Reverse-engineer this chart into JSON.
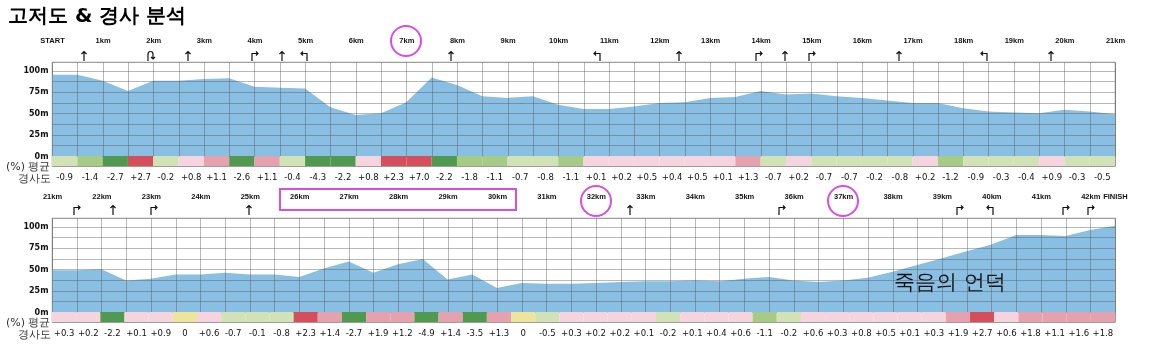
{
  "chart_data": [
    {
      "type": "area",
      "title": "고저도 & 경사 분석",
      "color": "#89bfe2",
      "grid": true,
      "x": [
        0,
        0.5,
        1,
        1.5,
        2,
        2.5,
        3,
        3.5,
        4,
        4.5,
        5,
        5.5,
        6,
        6.5,
        7,
        7.5,
        8,
        8.5,
        9,
        9.5,
        10,
        10.5,
        11,
        11.5,
        12,
        12.5,
        13,
        13.5,
        14,
        14.5,
        15,
        15.5,
        16,
        16.5,
        17,
        17.5,
        18,
        18.5,
        19,
        19.5,
        20,
        20.5,
        21
      ],
      "values": [
        95,
        95,
        88,
        76,
        88,
        88,
        90,
        91,
        81,
        80,
        79,
        57,
        48,
        50,
        63,
        92,
        83,
        70,
        68,
        70,
        60,
        55,
        55,
        58,
        62,
        63,
        68,
        69,
        76,
        72,
        73,
        70,
        68,
        65,
        62,
        62,
        56,
        52,
        51,
        50,
        54,
        52,
        49
      ],
      "xlim": [
        0,
        21
      ],
      "xticks": [
        {
          "value": 0,
          "label": "START"
        },
        {
          "value": 0.5,
          "label": null
        },
        {
          "value": 1,
          "label": "1km"
        },
        {
          "value": 1.5,
          "label": null
        },
        {
          "value": 2,
          "label": "2km"
        },
        {
          "value": 2.5,
          "label": null
        },
        {
          "value": 3,
          "label": "3km"
        },
        {
          "value": 3.5,
          "label": null
        },
        {
          "value": 4,
          "label": "4km"
        },
        {
          "value": 4.5,
          "label": null
        },
        {
          "value": 5,
          "label": "5km"
        },
        {
          "value": 5.5,
          "label": null
        },
        {
          "value": 6,
          "label": "6km"
        },
        {
          "value": 6.5,
          "label": null
        },
        {
          "value": 7,
          "label": "7km"
        },
        {
          "value": 7.5,
          "label": null
        },
        {
          "value": 8,
          "label": "8km"
        },
        {
          "value": 8.5,
          "label": null
        },
        {
          "value": 9,
          "label": "9km"
        },
        {
          "value": 9.5,
          "label": null
        },
        {
          "value": 10,
          "label": "10km"
        },
        {
          "value": 10.5,
          "label": null
        },
        {
          "value": 11,
          "label": "11km"
        },
        {
          "value": 11.5,
          "label": null
        },
        {
          "value": 12,
          "label": "12km"
        },
        {
          "value": 12.5,
          "label": null
        },
        {
          "value": 13,
          "label": "13km"
        },
        {
          "value": 13.5,
          "label": null
        },
        {
          "value": 14,
          "label": "14km"
        },
        {
          "value": 14.5,
          "label": null
        },
        {
          "value": 15,
          "label": "15km"
        },
        {
          "value": 15.5,
          "label": null
        },
        {
          "value": 16,
          "label": "16km"
        },
        {
          "value": 16.5,
          "label": null
        },
        {
          "value": 17,
          "label": "17km"
        },
        {
          "value": 17.5,
          "label": null
        },
        {
          "value": 18,
          "label": "18km"
        },
        {
          "value": 18.5,
          "label": null
        },
        {
          "value": 19,
          "label": "19km"
        },
        {
          "value": 19.5,
          "label": null
        },
        {
          "value": 20,
          "label": "20km"
        },
        {
          "value": 20.5,
          "label": null
        },
        {
          "value": 21,
          "label": "21km"
        }
      ],
      "ylim": [
        0,
        110
      ],
      "yticks": [
        {
          "value": 0,
          "label": "0m"
        },
        {
          "value": 12.5,
          "label": null
        },
        {
          "value": 25,
          "label": "25m"
        },
        {
          "value": 37.5,
          "label": null
        },
        {
          "value": 50,
          "label": "50m"
        },
        {
          "value": 62.5,
          "label": null
        },
        {
          "value": 75,
          "label": "75m"
        },
        {
          "value": 87.5,
          "label": null
        },
        {
          "value": 100,
          "label": "100m"
        }
      ]
    },
    {
      "type": "heatmap",
      "categories": [
        null,
        null,
        null,
        null,
        null,
        null,
        null,
        null,
        null,
        null,
        null,
        null,
        null,
        null,
        null,
        null,
        null,
        null,
        null,
        null,
        null,
        null,
        null,
        null,
        null,
        null,
        null,
        null,
        null,
        null,
        null,
        null,
        null,
        null,
        null,
        null,
        null,
        null,
        null,
        null,
        null,
        null
      ],
      "y_categories": [
        "(%) 평균 경사도"
      ],
      "cells": [
        [
          -0.9,
          -1.4,
          -2.7,
          2.7,
          -0.2,
          0.8,
          1.1,
          -2.6,
          1.1,
          -0.4,
          -4.3,
          -2.2,
          0.8,
          2.3,
          7.0,
          -2.2,
          -1.8,
          -1.1,
          -0.7,
          -0.8,
          -1.1,
          0.1,
          0.2,
          0.5,
          0.4,
          0.5,
          0.1,
          1.3,
          -0.7,
          0.2,
          -0.7,
          -0.7,
          -0.2,
          -0.8,
          0.2,
          -1.2,
          -0.9,
          -0.3,
          -0.4,
          0.9,
          -0.3,
          -0.5
        ]
      ],
      "cell_labels": [
        [
          "-0.9",
          "-1.4",
          "-2.7",
          "+2.7",
          "-0.2",
          "+0.8",
          "+1.1",
          "-2.6",
          "+1.1",
          "-0.4",
          "-4.3",
          "-2.2",
          "+0.8",
          "+2.3",
          "+7.0",
          "-2.2",
          "-1.8",
          "-1.1",
          "-0.7",
          "-0.8",
          "-1.1",
          "+0.1",
          "+0.2",
          "+0.5",
          "+0.4",
          "+0.5",
          "+0.1",
          "+1.3",
          "-0.7",
          "+0.2",
          "-0.7",
          "-0.7",
          "-0.2",
          "-0.8",
          "+0.2",
          "-1.2",
          "-0.9",
          "-0.3",
          "-0.4",
          "+0.9",
          "-0.3",
          "-0.5"
        ]
      ]
    },
    {
      "type": "area",
      "color": "#89bfe2",
      "grid": true,
      "x": [
        21,
        21.5,
        22,
        22.5,
        23,
        23.5,
        24,
        24.5,
        25,
        25.5,
        26,
        26.5,
        27,
        27.5,
        28,
        28.5,
        29,
        29.5,
        30,
        30.5,
        31,
        31.5,
        32,
        32.5,
        33,
        33.5,
        34,
        34.5,
        35,
        35.5,
        36,
        36.5,
        37,
        37.5,
        38,
        38.5,
        39,
        39.5,
        40,
        40.5,
        41,
        41.5,
        42,
        42.5
      ],
      "values": [
        49,
        49,
        50,
        37,
        39,
        44,
        44,
        46,
        44,
        44,
        41,
        51,
        59,
        46,
        56,
        62,
        38,
        44,
        28,
        34,
        33,
        33,
        34,
        35,
        36,
        36,
        37,
        36,
        39,
        41,
        37,
        35,
        37,
        40,
        47,
        55,
        63,
        71,
        79,
        90,
        90,
        89,
        96,
        101
      ],
      "annotations": [
        "죽음의 언덕"
      ],
      "xlim": [
        21,
        42.5
      ],
      "xticks": [
        {
          "value": 21,
          "label": "21km"
        },
        {
          "value": 21.5,
          "label": null
        },
        {
          "value": 22,
          "label": "22km"
        },
        {
          "value": 22.5,
          "label": null
        },
        {
          "value": 23,
          "label": "23km"
        },
        {
          "value": 23.5,
          "label": null
        },
        {
          "value": 24,
          "label": "24km"
        },
        {
          "value": 24.5,
          "label": null
        },
        {
          "value": 25,
          "label": "25km"
        },
        {
          "value": 25.5,
          "label": null
        },
        {
          "value": 26,
          "label": "26km"
        },
        {
          "value": 26.5,
          "label": null
        },
        {
          "value": 27,
          "label": "27km"
        },
        {
          "value": 27.5,
          "label": null
        },
        {
          "value": 28,
          "label": "28km"
        },
        {
          "value": 28.5,
          "label": null
        },
        {
          "value": 29,
          "label": "29km"
        },
        {
          "value": 29.5,
          "label": null
        },
        {
          "value": 30,
          "label": "30km"
        },
        {
          "value": 30.5,
          "label": null
        },
        {
          "value": 31,
          "label": "31km"
        },
        {
          "value": 31.5,
          "label": null
        },
        {
          "value": 32,
          "label": "32km"
        },
        {
          "value": 32.5,
          "label": null
        },
        {
          "value": 33,
          "label": "33km"
        },
        {
          "value": 33.5,
          "label": null
        },
        {
          "value": 34,
          "label": "34km"
        },
        {
          "value": 34.5,
          "label": null
        },
        {
          "value": 35,
          "label": "35km"
        },
        {
          "value": 35.5,
          "label": null
        },
        {
          "value": 36,
          "label": "36km"
        },
        {
          "value": 36.5,
          "label": null
        },
        {
          "value": 37,
          "label": "37km"
        },
        {
          "value": 37.5,
          "label": null
        },
        {
          "value": 38,
          "label": "38km"
        },
        {
          "value": 38.5,
          "label": null
        },
        {
          "value": 39,
          "label": "39km"
        },
        {
          "value": 39.5,
          "label": null
        },
        {
          "value": 40,
          "label": "40km"
        },
        {
          "value": 40.5,
          "label": null
        },
        {
          "value": 41,
          "label": "41km"
        },
        {
          "value": 41.5,
          "label": null
        },
        {
          "value": 42,
          "label": "42km"
        },
        {
          "value": 42.5,
          "label": "FINISH"
        }
      ],
      "ylim": [
        0,
        110
      ],
      "yticks": [
        {
          "value": 0,
          "label": "0m"
        },
        {
          "value": 12.5,
          "label": null
        },
        {
          "value": 25,
          "label": "25m"
        },
        {
          "value": 37.5,
          "label": null
        },
        {
          "value": 50,
          "label": "50m"
        },
        {
          "value": 62.5,
          "label": null
        },
        {
          "value": 75,
          "label": "75m"
        },
        {
          "value": 87.5,
          "label": null
        },
        {
          "value": 100,
          "label": "100m"
        }
      ]
    },
    {
      "type": "heatmap",
      "categories": [
        null,
        null,
        null,
        null,
        null,
        null,
        null,
        null,
        null,
        null,
        null,
        null,
        null,
        null,
        null,
        null,
        null,
        null,
        null,
        null,
        null,
        null,
        null,
        null,
        null,
        null,
        null,
        null,
        null,
        null,
        null,
        null,
        null,
        null,
        null,
        null,
        null,
        null,
        null,
        null,
        null,
        null,
        null,
        null
      ],
      "y_categories": [
        "(%) 평균 경사도"
      ],
      "cells": [
        [
          0.3,
          0.2,
          -2.2,
          0.1,
          0.9,
          0,
          0.6,
          -0.7,
          -0.1,
          -0.8,
          2.3,
          1.4,
          -2.7,
          1.9,
          1.2,
          -4.9,
          1.4,
          -3.5,
          1.3,
          0,
          -0.5,
          0.3,
          0.2,
          0.2,
          0.1,
          -0.2,
          0.1,
          0.4,
          0.6,
          -1.1,
          -0.2,
          0.6,
          0.3,
          0.8,
          0.5,
          0.1,
          0.3,
          1.9,
          2.7,
          0.6,
          1.8,
          1.1,
          1.6,
          1.8
        ]
      ],
      "cell_labels": [
        [
          "+0.3",
          "+0.2",
          "-2.2",
          "+0.1",
          "+0.9",
          "0",
          "+0.6",
          "-0.7",
          "-0.1",
          "-0.8",
          "+2.3",
          "+1.4",
          "-2.7",
          "+1.9",
          "+1.2",
          "-4.9",
          "+1.4",
          "-3.5",
          "+1.3",
          "0",
          "-0.5",
          "+0.3",
          "+0.2",
          "+0.2",
          "+0.1",
          "-0.2",
          "+0.1",
          "+0.4",
          "+0.6",
          "-1.1",
          "-0.2",
          "+0.6",
          "+0.3",
          "+0.8",
          "+0.5",
          "+0.1",
          "+0.3",
          "+1.9",
          "+2.7",
          "+0.6",
          "+1.8",
          "+1.1",
          "+1.6",
          "+1.8"
        ]
      ]
    }
  ]
}
